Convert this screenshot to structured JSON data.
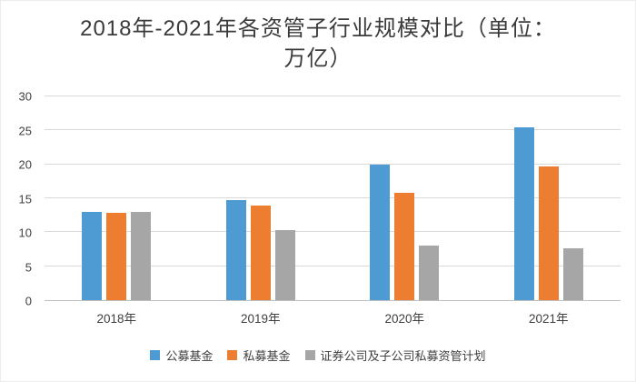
{
  "chart": {
    "title_lines": [
      "2018年-2021年各资管子行业规模对比（单位：",
      "万亿）"
    ]
  },
  "chart_data": {
    "type": "bar",
    "title": "2018年-2021年各资管子行业规模对比（单位：万亿）",
    "categories": [
      "2018年",
      "2019年",
      "2020年",
      "2021年"
    ],
    "series": [
      {
        "name": "公募基金",
        "color": "#4E9BD4",
        "values": [
          13.0,
          14.8,
          19.9,
          25.5
        ]
      },
      {
        "name": "私募基金",
        "color": "#ED7D31",
        "values": [
          12.8,
          13.9,
          15.8,
          19.7
        ]
      },
      {
        "name": "证券公司及子公司私募资管计划",
        "color": "#A6A6A6",
        "values": [
          13.0,
          10.3,
          8.0,
          7.7
        ]
      }
    ],
    "ylim": [
      0,
      30
    ],
    "yticks": [
      0,
      5,
      10,
      15,
      20,
      25,
      30
    ],
    "grid": true,
    "legend_position": "bottom"
  }
}
